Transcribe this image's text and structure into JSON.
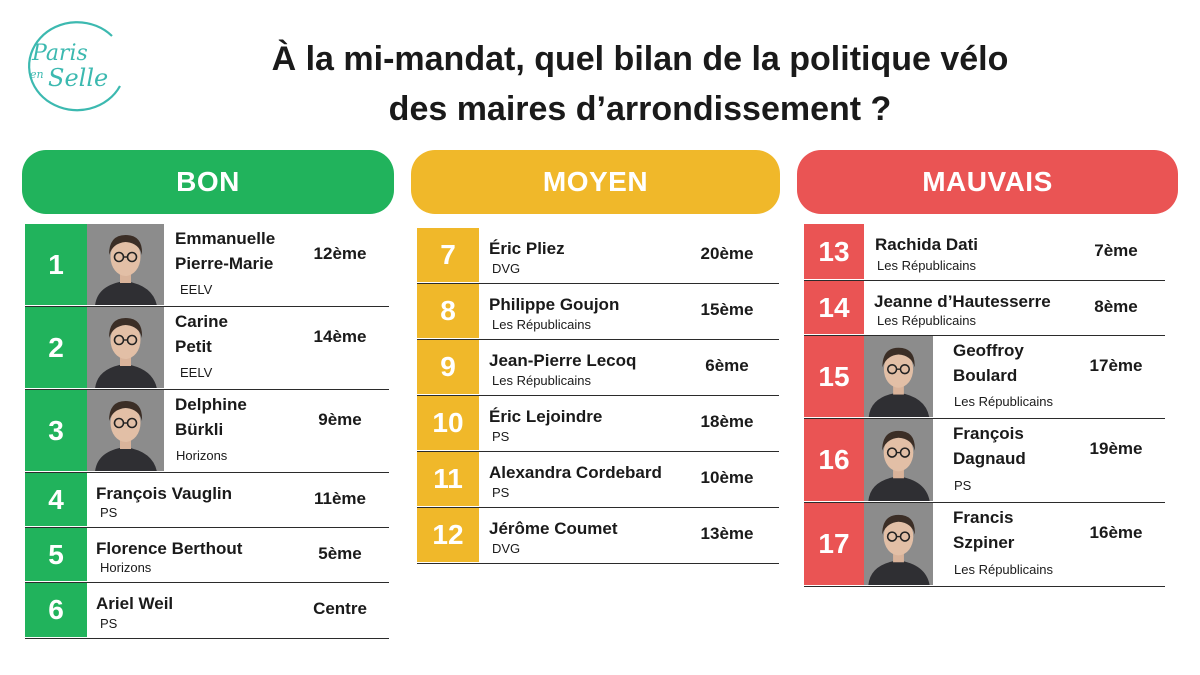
{
  "logo": {
    "line1": "Paris",
    "line2": "en",
    "line3": "Selle",
    "color": "#3cb9b0"
  },
  "title": {
    "line1": "À la mi-mandat, quel bilan de la politique vélo",
    "line2": "des maires d’arrondissement ?"
  },
  "colors": {
    "bon": "#21b35c",
    "moyen": "#f0b82a",
    "mauvais": "#ea5454",
    "photo_bg": "#8c8c8c"
  },
  "columns": [
    {
      "key": "bon",
      "label": "BON",
      "rows": [
        {
          "rank": "1",
          "name": "Emmanuelle\nPierre-Marie",
          "party": "EELV",
          "arrondissement": "12ème",
          "photo": "portrait-photo"
        },
        {
          "rank": "2",
          "name": "Carine\nPetit",
          "party": "EELV",
          "arrondissement": "14ème",
          "photo": "portrait-photo"
        },
        {
          "rank": "3",
          "name": "Delphine\nBürkli",
          "party": "Horizons",
          "arrondissement": "9ème",
          "photo": "portrait-photo"
        },
        {
          "rank": "4",
          "name": "François Vauglin",
          "party": "PS",
          "arrondissement": "11ème"
        },
        {
          "rank": "5",
          "name": "Florence Berthout",
          "party": "Horizons",
          "arrondissement": "5ème"
        },
        {
          "rank": "6",
          "name": "Ariel Weil",
          "party": "PS",
          "arrondissement": "Centre"
        }
      ]
    },
    {
      "key": "moyen",
      "label": "MOYEN",
      "rows": [
        {
          "rank": "7",
          "name": "Éric Pliez",
          "party": "DVG",
          "arrondissement": "20ème"
        },
        {
          "rank": "8",
          "name": "Philippe Goujon",
          "party": "Les Républicains",
          "arrondissement": "15ème"
        },
        {
          "rank": "9",
          "name": "Jean-Pierre Lecoq",
          "party": "Les Républicains",
          "arrondissement": "6ème"
        },
        {
          "rank": "10",
          "name": "Éric Lejoindre",
          "party": "PS",
          "arrondissement": "18ème"
        },
        {
          "rank": "11",
          "name": "Alexandra Cordebard",
          "party": "PS",
          "arrondissement": "10ème"
        },
        {
          "rank": "12",
          "name": "Jérôme Coumet",
          "party": "DVG",
          "arrondissement": "13ème"
        }
      ]
    },
    {
      "key": "mauvais",
      "label": "MAUVAIS",
      "rows": [
        {
          "rank": "13",
          "name": "Rachida Dati",
          "party": "Les Républicains",
          "arrondissement": "7ème"
        },
        {
          "rank": "14",
          "name": "Jeanne d’Hautesserre",
          "party": "Les Républicains",
          "arrondissement": "8ème"
        },
        {
          "rank": "15",
          "name": "Geoffroy\nBoulard",
          "party": "Les Républicains",
          "arrondissement": "17ème",
          "photo": "portrait-photo"
        },
        {
          "rank": "16",
          "name": "François\nDagnaud",
          "party": "PS",
          "arrondissement": "19ème",
          "photo": "portrait-photo"
        },
        {
          "rank": "17",
          "name": "Francis\nSzpiner",
          "party": "Les Républicains",
          "arrondissement": "16ème",
          "photo": "portrait-photo"
        }
      ]
    }
  ]
}
